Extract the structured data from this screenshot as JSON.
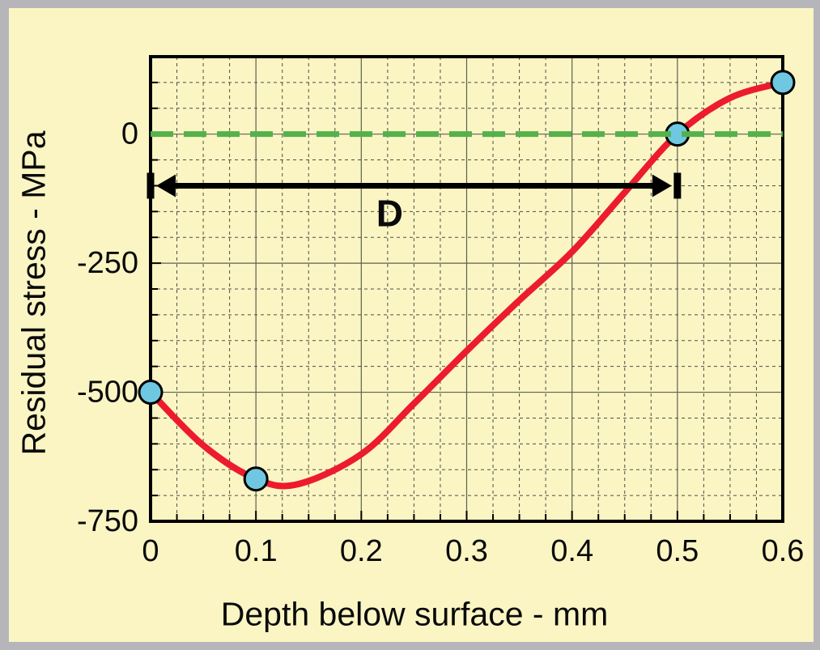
{
  "colors": {
    "frame": "#B6B6BA",
    "background": "#FAF5C3",
    "axis_box": "#000000",
    "grid_major": "#5F5F54",
    "grid_minor": "#4E4E44",
    "tick": "#000000",
    "text": "#0a0a0a",
    "curve": "#EC1B2D",
    "zero_line": "#55B14B",
    "marker_fill": "#6FC8E1",
    "marker_stroke": "#000000",
    "annotation": "#000000"
  },
  "chart_data": {
    "type": "line",
    "title": "",
    "xlabel": "Depth below surface - mm",
    "ylabel": "Residual stress - MPa",
    "xlim": [
      0,
      0.6
    ],
    "ylim": [
      -750,
      150
    ],
    "x_tick_values": [
      0,
      0.1,
      0.2,
      0.3,
      0.4,
      0.5,
      0.6
    ],
    "x_tick_labels": [
      "0",
      "0.1",
      "0.2",
      "0.3",
      "0.4",
      "0.5",
      "0.6"
    ],
    "y_tick_values": [
      0,
      -250,
      -500,
      -750
    ],
    "y_tick_labels": [
      "0",
      "-250",
      "-500",
      "-750"
    ],
    "x_minor_step": 0.025,
    "y_minor_step": 50,
    "grid": {
      "major": "solid",
      "minor": "dashed"
    },
    "zero_line": {
      "y": 0,
      "style": "long-dash"
    },
    "series": [
      {
        "name": "residual stress profile",
        "x": [
          0,
          0.05,
          0.1,
          0.14,
          0.2,
          0.25,
          0.3,
          0.35,
          0.4,
          0.45,
          0.5,
          0.55,
          0.6
        ],
        "y": [
          -500,
          -603,
          -668,
          -678,
          -620,
          -522,
          -420,
          -322,
          -228,
          -113,
          0,
          70,
          100
        ]
      }
    ],
    "marker_points": [
      [
        0,
        -500
      ],
      [
        0.1,
        -668
      ],
      [
        0.5,
        0
      ],
      [
        0.6,
        100
      ]
    ],
    "annotation": {
      "label": "D",
      "x_start": 0,
      "x_end": 0.5,
      "y": -100,
      "style": "double-arrow-with-end-bars"
    }
  }
}
